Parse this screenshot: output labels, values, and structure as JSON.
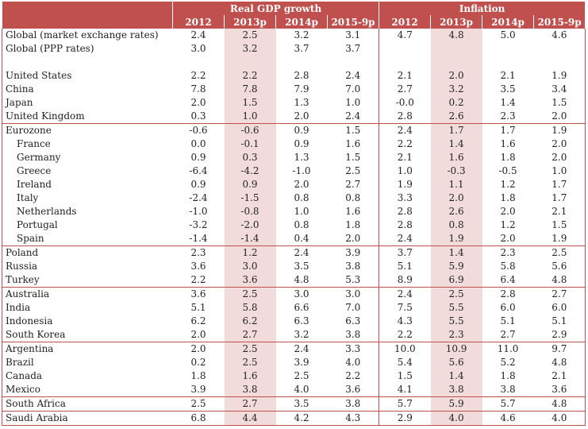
{
  "chart_data": {
    "type": "table",
    "group_headers": [
      "Real GDP growth",
      "Inflation"
    ],
    "columns": [
      "2012",
      "2013p",
      "2014p",
      "2015-9p",
      "2012",
      "2013p",
      "2014p",
      "2015-9p"
    ],
    "highlight_column": "2013p",
    "rows": [
      {
        "name": "Global (market exchange rates)",
        "indent": false,
        "values": [
          "2.4",
          "2.5",
          "3.2",
          "3.1",
          "4.7",
          "4.8",
          "5.0",
          "4.6"
        ]
      },
      {
        "name": "Global (PPP rates)",
        "indent": false,
        "values": [
          "3.0",
          "3.2",
          "3.7",
          "3.7",
          "",
          "",
          "",
          ""
        ]
      },
      {
        "name": "",
        "indent": false,
        "spacer": true,
        "values": [
          "",
          "",
          "",
          "",
          "",
          "",
          "",
          ""
        ]
      },
      {
        "name": "United States",
        "indent": false,
        "values": [
          "2.2",
          "2.2",
          "2.8",
          "2.4",
          "2.1",
          "2.0",
          "2.1",
          "1.9"
        ]
      },
      {
        "name": "China",
        "indent": false,
        "values": [
          "7.8",
          "7.8",
          "7.9",
          "7.0",
          "2.7",
          "3.2",
          "3.5",
          "3.4"
        ]
      },
      {
        "name": "Japan",
        "indent": false,
        "values": [
          "2.0",
          "1.5",
          "1.3",
          "1.0",
          "-0.0",
          "0.2",
          "1.4",
          "1.5"
        ]
      },
      {
        "name": "United Kingdom",
        "indent": false,
        "end": true,
        "values": [
          "0.3",
          "1.0",
          "2.0",
          "2.4",
          "2.8",
          "2.6",
          "2.3",
          "2.0"
        ]
      },
      {
        "name": "Eurozone",
        "indent": false,
        "values": [
          "-0.6",
          "-0.6",
          "0.9",
          "1.5",
          "2.4",
          "1.7",
          "1.7",
          "1.9"
        ]
      },
      {
        "name": "France",
        "indent": true,
        "values": [
          "0.0",
          "-0.1",
          "0.9",
          "1.6",
          "2.2",
          "1.4",
          "1.6",
          "2.0"
        ]
      },
      {
        "name": "Germany",
        "indent": true,
        "values": [
          "0.9",
          "0.3",
          "1.3",
          "1.5",
          "2.1",
          "1.6",
          "1.8",
          "2.0"
        ]
      },
      {
        "name": "Greece",
        "indent": true,
        "values": [
          "-6.4",
          "-4.2",
          "-1.0",
          "2.5",
          "1.0",
          "-0.3",
          "-0.5",
          "1.0"
        ]
      },
      {
        "name": "Ireland",
        "indent": true,
        "values": [
          "0.9",
          "0.9",
          "2.0",
          "2.7",
          "1.9",
          "1.1",
          "1.2",
          "1.7"
        ]
      },
      {
        "name": "Italy",
        "indent": true,
        "values": [
          "-2.4",
          "-1.5",
          "0.8",
          "0.8",
          "3.3",
          "2.0",
          "1.8",
          "1.7"
        ]
      },
      {
        "name": "Netherlands",
        "indent": true,
        "values": [
          "-1.0",
          "-0.8",
          "1.0",
          "1.6",
          "2.8",
          "2.6",
          "2.0",
          "2.1"
        ]
      },
      {
        "name": "Portugal",
        "indent": true,
        "values": [
          "-3.2",
          "-2.0",
          "0.8",
          "1.8",
          "2.8",
          "0.8",
          "1.2",
          "1.5"
        ]
      },
      {
        "name": "Spain",
        "indent": true,
        "end": true,
        "values": [
          "-1.4",
          "-1.4",
          "0.4",
          "2.0",
          "2.4",
          "1.9",
          "2.0",
          "1.9"
        ]
      },
      {
        "name": "Poland",
        "indent": false,
        "values": [
          "2.3",
          "1.2",
          "2.4",
          "3.9",
          "3.7",
          "1.4",
          "2.3",
          "2.5"
        ]
      },
      {
        "name": "Russia",
        "indent": false,
        "values": [
          "3.6",
          "3.0",
          "3.5",
          "3.8",
          "5.1",
          "5.9",
          "5.8",
          "5.6"
        ]
      },
      {
        "name": "Turkey",
        "indent": false,
        "end": true,
        "values": [
          "2.2",
          "3.6",
          "4.8",
          "5.3",
          "8.9",
          "6.9",
          "6.4",
          "4.8"
        ]
      },
      {
        "name": "Australia",
        "indent": false,
        "values": [
          "3.6",
          "2.5",
          "3.0",
          "3.0",
          "2.4",
          "2.5",
          "2.8",
          "2.7"
        ]
      },
      {
        "name": "India",
        "indent": false,
        "values": [
          "5.1",
          "5.8",
          "6.6",
          "7.0",
          "7.5",
          "5.5",
          "6.0",
          "6.0"
        ]
      },
      {
        "name": "Indonesia",
        "indent": false,
        "values": [
          "6.2",
          "6.2",
          "6.3",
          "6.3",
          "4.3",
          "5.5",
          "5.1",
          "5.1"
        ]
      },
      {
        "name": "South Korea",
        "indent": false,
        "end": true,
        "values": [
          "2.0",
          "2.7",
          "3.2",
          "3.8",
          "2.2",
          "2.3",
          "2.7",
          "2.9"
        ]
      },
      {
        "name": "Argentina",
        "indent": false,
        "values": [
          "2.0",
          "2.5",
          "2.4",
          "3.3",
          "10.0",
          "10.9",
          "11.0",
          "9.7"
        ]
      },
      {
        "name": "Brazil",
        "indent": false,
        "values": [
          "0.2",
          "2.5",
          "3.9",
          "4.0",
          "5.4",
          "5.6",
          "5.2",
          "4.8"
        ]
      },
      {
        "name": "Canada",
        "indent": false,
        "values": [
          "1.8",
          "1.6",
          "2.5",
          "2.2",
          "1.5",
          "1.4",
          "1.8",
          "2.1"
        ]
      },
      {
        "name": "Mexico",
        "indent": false,
        "end": true,
        "values": [
          "3.9",
          "3.8",
          "4.0",
          "3.6",
          "4.1",
          "3.8",
          "3.8",
          "3.6"
        ]
      },
      {
        "name": "South Africa",
        "indent": false,
        "end": true,
        "values": [
          "2.5",
          "2.7",
          "3.5",
          "3.8",
          "5.7",
          "5.9",
          "5.7",
          "4.8"
        ]
      },
      {
        "name": "Saudi Arabia",
        "indent": false,
        "end": true,
        "values": [
          "6.8",
          "4.4",
          "4.2",
          "4.3",
          "2.9",
          "4.0",
          "4.6",
          "4.0"
        ]
      }
    ]
  },
  "colors": {
    "header_bg": "#c0504d",
    "header_text": "#ffffff",
    "highlight_bg": "#f2dcdb",
    "rule": "#c0504d"
  }
}
